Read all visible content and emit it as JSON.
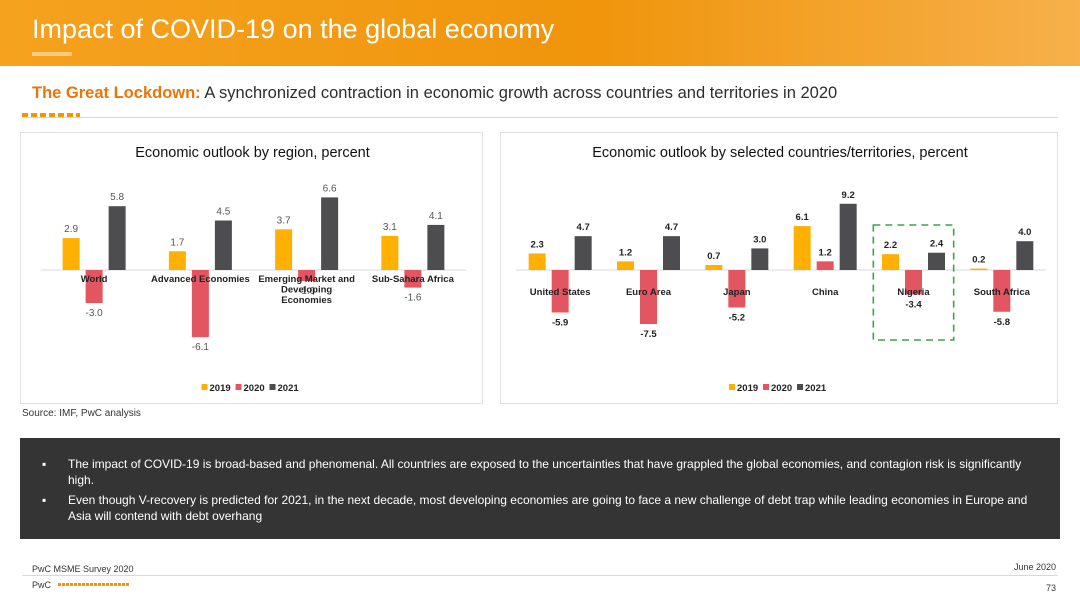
{
  "header": {
    "title": "Impact of COVID-19 on the global economy",
    "headline_highlight": "The Great Lockdown:",
    "headline_rest": " A synchronized contraction in economic growth across countries and territories in 2020"
  },
  "colors": {
    "2019": "#ffb000",
    "2020": "#e35561",
    "2021": "#4d4d4f",
    "accent": "#e8760b",
    "highlight_box": "#3aa54a"
  },
  "chart_data": [
    {
      "type": "bar",
      "title": "Economic outlook by region, percent",
      "categories": [
        "World",
        "Advanced Economies",
        "Emerging Market and Developing Economies",
        "Sub-Sahara Africa"
      ],
      "category_lines": [
        [
          "World"
        ],
        [
          "Advanced Economies"
        ],
        [
          "Emerging Market and",
          "Developing",
          "Economies"
        ],
        [
          "Sub-Sahara Africa"
        ]
      ],
      "series": [
        {
          "name": "2019",
          "values": [
            2.9,
            1.7,
            3.7,
            3.1
          ],
          "labels": [
            "2.9",
            "1.7",
            "3.7",
            "3.1"
          ]
        },
        {
          "name": "2020",
          "values": [
            -3.0,
            -6.1,
            -1.0,
            -1.6
          ],
          "labels": [
            "-3.0",
            "-6.1",
            "-1.0",
            "-1.6"
          ]
        },
        {
          "name": "2021",
          "values": [
            5.8,
            4.5,
            6.6,
            4.1
          ],
          "labels": [
            "5.8",
            "4.5",
            "6.6",
            "4.1"
          ]
        }
      ],
      "ylim": [
        -7,
        7
      ],
      "legend": [
        "2019",
        "2020",
        "2021"
      ],
      "legend_position": "bottom-center",
      "grid": false
    },
    {
      "type": "bar",
      "title": "Economic outlook by selected countries/territories, percent",
      "categories": [
        "United States",
        "Euro Area",
        "Japan",
        "China",
        "Nigeria",
        "South Africa"
      ],
      "category_lines": [
        [
          "United States"
        ],
        [
          "Euro Area"
        ],
        [
          "Japan"
        ],
        [
          "China"
        ],
        [
          "Nigeria"
        ],
        [
          "South Africa"
        ]
      ],
      "series": [
        {
          "name": "2019",
          "values": [
            2.3,
            1.2,
            0.7,
            6.1,
            2.2,
            0.2
          ],
          "labels": [
            "2.3",
            "1.2",
            "0.7",
            "6.1",
            "2.2",
            "0.2"
          ]
        },
        {
          "name": "2020",
          "values": [
            -5.9,
            -7.5,
            -5.2,
            1.2,
            -3.4,
            -5.8
          ],
          "labels": [
            "-5.9",
            "-7.5",
            "-5.2",
            "1.2",
            "-3.4",
            "-5.8"
          ]
        },
        {
          "name": "2021",
          "values": [
            4.7,
            4.7,
            3.0,
            9.2,
            2.4,
            4.0
          ],
          "labels": [
            "4.7",
            "4.7",
            "3.0",
            "9.2",
            "2.4",
            "4.0"
          ]
        }
      ],
      "ylim": [
        -8,
        10
      ],
      "highlight_category": "Nigeria",
      "legend": [
        "2019",
        "2020",
        "2021"
      ],
      "legend_position": "bottom-center",
      "grid": false
    }
  ],
  "source": "Source: IMF, PwC analysis",
  "bullets": [
    {
      "marker": "▪",
      "text": "The impact of COVID-19 is broad-based and phenomenal. All countries are exposed to the uncertainties that have grappled the global economies, and contagion risk is significantly high."
    },
    {
      "marker": "▪",
      "text": "Even though V-recovery is predicted for 2021, in the next decade, most developing economies are going to face a new challenge of debt trap while leading economies in Europe and Asia will contend with debt overhang"
    }
  ],
  "footer": {
    "survey": "PwC MSME Survey 2020",
    "date": "June 2020",
    "brand": "PwC",
    "page": "73"
  }
}
